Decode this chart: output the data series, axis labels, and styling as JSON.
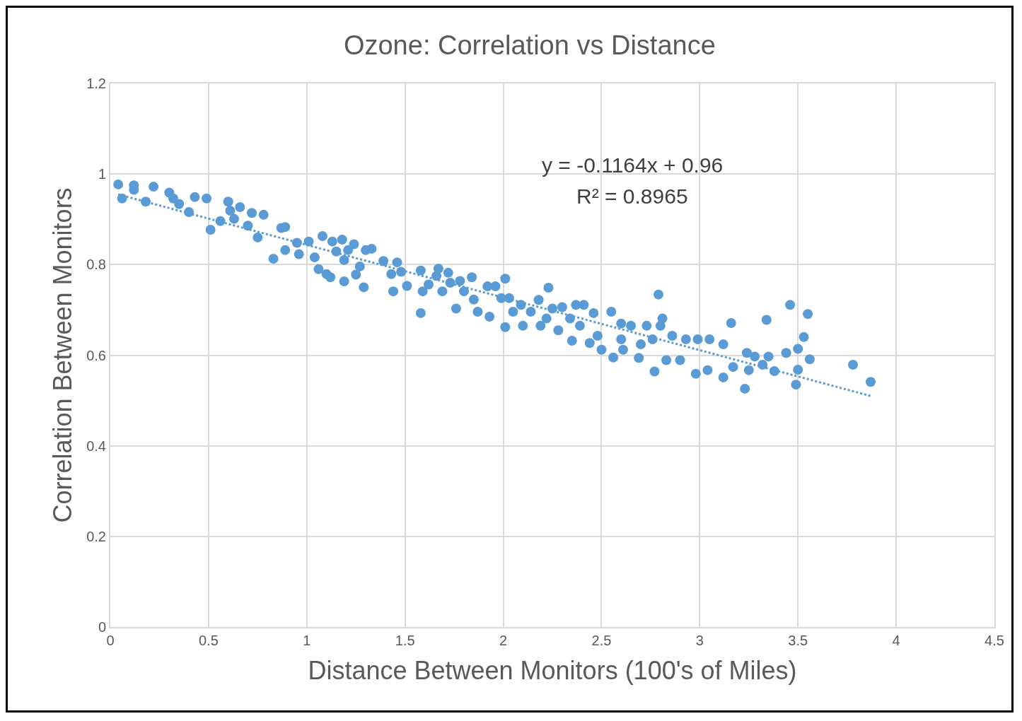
{
  "chart_data": {
    "type": "scatter",
    "title": "Ozone: Correlation vs Distance",
    "xlabel": "Distance Between Monitors (100's of Miles)",
    "ylabel": "Correlation Between Monitors",
    "annotations": [
      "y = -0.1164x + 0.96",
      "R² = 0.8965"
    ],
    "xlim": [
      0,
      4.5
    ],
    "xticks": [
      0,
      0.5,
      1,
      1.5,
      2,
      2.5,
      3,
      3.5,
      4,
      4.5
    ],
    "ylim": [
      0,
      1.2
    ],
    "yticks": [
      0,
      0.2,
      0.4,
      0.6,
      0.8,
      1,
      1.2
    ],
    "grid": true,
    "series": [
      {
        "marker": "circle",
        "color": "#5b9bd5",
        "x": [
          0.04,
          0.06,
          0.12,
          0.12,
          0.18,
          0.22,
          0.3,
          0.32,
          0.35,
          0.4,
          0.43,
          0.49,
          0.51,
          0.56,
          0.6,
          0.61,
          0.63,
          0.66,
          0.7,
          0.72,
          0.75,
          0.78,
          0.83,
          0.87,
          0.89,
          0.89,
          0.95,
          0.96,
          1.01,
          1.04,
          1.06,
          1.08,
          1.1,
          1.12,
          1.13,
          1.18,
          1.19,
          1.15,
          1.19,
          1.21,
          1.24,
          1.25,
          1.27,
          1.29,
          1.3,
          1.33,
          1.39,
          1.43,
          1.44,
          1.46,
          1.48,
          1.51,
          1.58,
          1.58,
          1.59,
          1.62,
          1.66,
          1.67,
          1.69,
          1.72,
          1.73,
          1.76,
          1.78,
          1.8,
          1.84,
          1.85,
          1.87,
          1.92,
          1.93,
          1.96,
          1.99,
          2.01,
          2.01,
          2.03,
          2.05,
          2.09,
          2.1,
          2.14,
          2.18,
          2.19,
          2.22,
          2.23,
          2.25,
          2.28,
          2.3,
          2.34,
          2.35,
          2.37,
          2.39,
          2.41,
          2.44,
          2.46,
          2.48,
          2.5,
          2.55,
          2.56,
          2.6,
          2.6,
          2.61,
          2.65,
          2.69,
          2.7,
          2.73,
          2.76,
          2.77,
          2.79,
          2.8,
          2.81,
          2.83,
          2.86,
          2.9,
          2.93,
          2.98,
          2.99,
          3.04,
          3.05,
          3.12,
          3.12,
          3.16,
          3.17,
          3.23,
          3.24,
          3.25,
          3.28,
          3.32,
          3.34,
          3.35,
          3.38,
          3.44,
          3.46,
          3.49,
          3.5,
          3.5,
          3.53,
          3.55,
          3.56,
          3.78,
          3.87
        ],
        "values": [
          0.977,
          0.946,
          0.975,
          0.965,
          0.939,
          0.972,
          0.959,
          0.946,
          0.934,
          0.916,
          0.949,
          0.946,
          0.877,
          0.896,
          0.939,
          0.919,
          0.901,
          0.927,
          0.886,
          0.914,
          0.86,
          0.91,
          0.813,
          0.881,
          0.883,
          0.832,
          0.848,
          0.823,
          0.851,
          0.816,
          0.79,
          0.863,
          0.779,
          0.772,
          0.851,
          0.855,
          0.763,
          0.829,
          0.81,
          0.832,
          0.845,
          0.778,
          0.796,
          0.75,
          0.832,
          0.835,
          0.808,
          0.779,
          0.741,
          0.805,
          0.784,
          0.753,
          0.787,
          0.693,
          0.741,
          0.756,
          0.775,
          0.791,
          0.741,
          0.782,
          0.76,
          0.703,
          0.764,
          0.741,
          0.772,
          0.723,
          0.696,
          0.752,
          0.685,
          0.752,
          0.726,
          0.769,
          0.662,
          0.726,
          0.696,
          0.711,
          0.665,
          0.696,
          0.722,
          0.665,
          0.681,
          0.749,
          0.703,
          0.655,
          0.706,
          0.681,
          0.632,
          0.711,
          0.665,
          0.711,
          0.627,
          0.693,
          0.643,
          0.612,
          0.696,
          0.595,
          0.67,
          0.635,
          0.612,
          0.665,
          0.594,
          0.624,
          0.665,
          0.635,
          0.564,
          0.734,
          0.665,
          0.681,
          0.589,
          0.643,
          0.589,
          0.635,
          0.559,
          0.635,
          0.567,
          0.635,
          0.551,
          0.624,
          0.671,
          0.574,
          0.526,
          0.605,
          0.567,
          0.597,
          0.579,
          0.678,
          0.597,
          0.565,
          0.605,
          0.711,
          0.535,
          0.614,
          0.568,
          0.64,
          0.691,
          0.591,
          0.579,
          0.541
        ]
      },
      {
        "type": "line",
        "marker": "none",
        "line_style": "dotted",
        "color": "#5b9bd5",
        "x": [
          0.04,
          3.87
        ],
        "values": [
          0.955,
          0.51
        ]
      }
    ]
  }
}
